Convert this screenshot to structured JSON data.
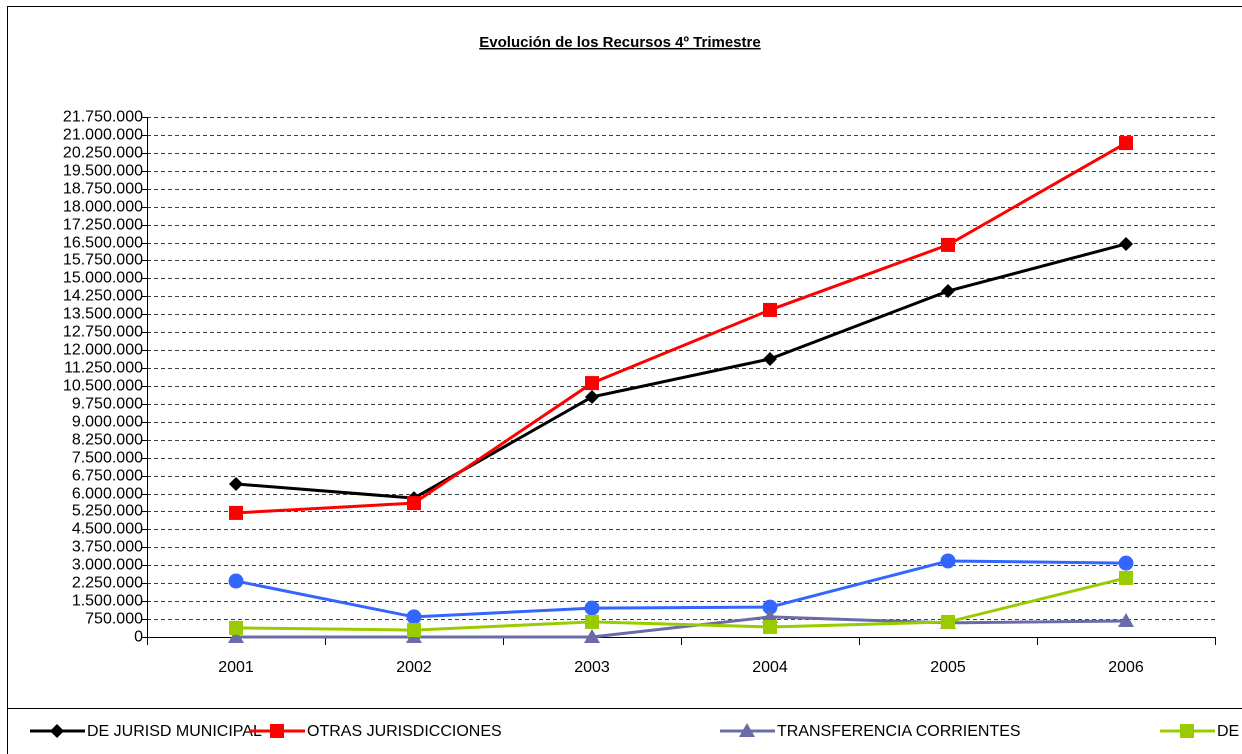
{
  "chart_data": {
    "type": "line",
    "title": "Evolución de los Recursos 4º Trimestre",
    "categories": [
      "2001",
      "2002",
      "2003",
      "2004",
      "2005",
      "2006"
    ],
    "series": [
      {
        "name": "DE JURISD MUNICIPAL",
        "color": "#000000",
        "marker": "diamond",
        "values": [
          6400000,
          5810000,
          10040000,
          11630000,
          14470000,
          16440000
        ]
      },
      {
        "name": "OTRAS JURISDICCIONES",
        "color": "#ff0000",
        "marker": "square",
        "values": [
          5190000,
          5600000,
          10620000,
          13680000,
          16400000,
          20660000
        ]
      },
      {
        "name": "TRANSFERENCIA CORRIENTES",
        "color": "#6b6ba8",
        "marker": "triangle",
        "values": [
          0,
          0,
          0,
          840000,
          590000,
          670000
        ]
      },
      {
        "name": "DE",
        "color": "#99cc00",
        "marker": "square",
        "values": [
          380000,
          290000,
          630000,
          420000,
          630000,
          2470000
        ]
      },
      {
        "color": "#3366ff",
        "marker": "circle",
        "values": [
          2340000,
          840000,
          1210000,
          1250000,
          3180000,
          3090000
        ]
      }
    ],
    "ylim": [
      0,
      21750000
    ],
    "yticks": [
      0,
      {
        "value": 750000,
        "label": "750.000"
      },
      {
        "value": 1500000,
        "label": "1.500.000"
      },
      {
        "value": 2250000,
        "label": "2.250.000"
      },
      {
        "value": 3000000,
        "label": "3.000.000"
      },
      {
        "value": 3750000,
        "label": "3.750.000"
      },
      {
        "value": 4500000,
        "label": "4.500.000"
      },
      {
        "value": 5250000,
        "label": "5.250.000"
      },
      {
        "value": 6000000,
        "label": "6.000.000"
      },
      {
        "value": 6750000,
        "label": "6.750.000"
      },
      {
        "value": 7500000,
        "label": "7.500.000"
      },
      {
        "value": 8250000,
        "label": "8.250.000"
      },
      {
        "value": 9000000,
        "label": "9.000.000"
      },
      {
        "value": 9750000,
        "label": "9.750.000"
      },
      {
        "value": 10500000,
        "label": "10.500.000"
      },
      {
        "value": 11250000,
        "label": "11.250.000"
      },
      {
        "value": 12000000,
        "label": "12.000.000"
      },
      {
        "value": 12750000,
        "label": "12.750.000"
      },
      {
        "value": 13500000,
        "label": "13.500.000"
      },
      {
        "value": 14250000,
        "label": "14.250.000"
      },
      {
        "value": 15000000,
        "label": "15.000.000"
      },
      {
        "value": 15750000,
        "label": "15.750.000"
      },
      {
        "value": 16500000,
        "label": "16.500.000"
      },
      {
        "value": 17250000,
        "label": "17.250.000"
      },
      {
        "value": 18000000,
        "label": "18.000.000"
      },
      {
        "value": 18750000,
        "label": "18.750.000"
      },
      {
        "value": 19500000,
        "label": "19.500.000"
      },
      {
        "value": 20250000,
        "label": "20.250.000"
      },
      {
        "value": 21000000,
        "label": "21.000.000"
      },
      {
        "value": 21750000,
        "label": "21.750.000"
      }
    ],
    "grid": true,
    "legend": "bottom"
  }
}
